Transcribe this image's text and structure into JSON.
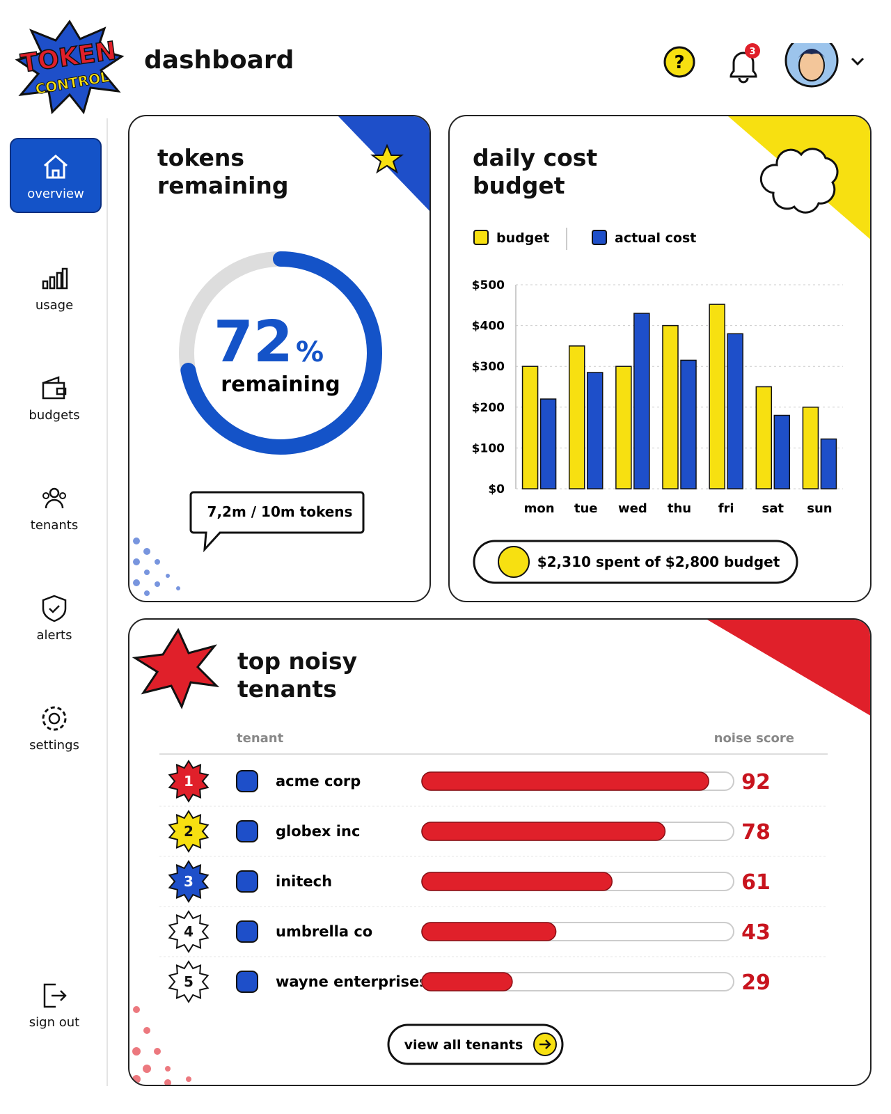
{
  "logo": {
    "line1": "TOKEN",
    "line2": "CONTROL"
  },
  "header": {
    "title": "dashboard",
    "notifications": 3
  },
  "nav": [
    "overview",
    "usage",
    "budgets",
    "tenants",
    "alerts",
    "settings",
    "sign out"
  ],
  "tokens": {
    "title": "tokens remaining",
    "percent": 72,
    "percent_sign": "%",
    "caption": "remaining",
    "summary": "7,2m / 10m tokens"
  },
  "budget": {
    "title": "daily cost budget",
    "summary": "$2,310 spent of $2,800 budget",
    "chart_data": {
      "type": "bar",
      "categories": [
        "mon",
        "tue",
        "wed",
        "thu",
        "fri",
        "sat",
        "sun"
      ],
      "series": [
        {
          "name": "budget",
          "color": "#f7e011",
          "values": [
            300,
            350,
            300,
            400,
            452,
            250,
            200
          ]
        },
        {
          "name": "actual cost",
          "color": "#1e4fc9",
          "values": [
            220,
            285,
            430,
            315,
            380,
            180,
            122
          ]
        }
      ],
      "ylim": [
        0,
        500
      ],
      "yticks": [
        {
          "value": 0,
          "label": "$0"
        },
        {
          "value": 100,
          "label": "$100"
        },
        {
          "value": 200,
          "label": "$200"
        },
        {
          "value": 300,
          "label": "$300"
        },
        {
          "value": 400,
          "label": "$400"
        },
        {
          "value": 500,
          "label": "$500"
        }
      ],
      "grid": true
    }
  },
  "tenants": {
    "title": "top noisy tenants",
    "columns": [
      "tenant",
      "noise score"
    ],
    "score_max": 100,
    "rows": [
      {
        "rank": 1,
        "name": "acme corp",
        "score": 92
      },
      {
        "rank": 2,
        "name": "globex inc",
        "score": 78
      },
      {
        "rank": 3,
        "name": "initech",
        "score": 61
      },
      {
        "rank": 4,
        "name": "umbrella co",
        "score": 43
      },
      {
        "rank": 5,
        "name": "wayne enterprises",
        "score": 29
      }
    ],
    "button": "view all tenants"
  }
}
